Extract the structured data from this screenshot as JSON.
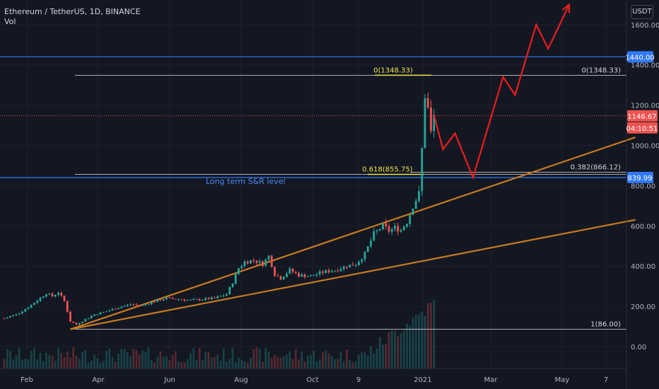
{
  "header": {
    "symbol_line": "Ethereum / TetherUS, 1D, BINANCE",
    "indicator": "Vol",
    "currency": "USDT"
  },
  "colors": {
    "background": "#131722",
    "up_candle": "#26a69a",
    "down_candle": "#ef5350",
    "channel": "#c87a1e",
    "fib_line": "#e6e6e6",
    "fib_highlight": "#f2e34b",
    "sr_line": "#3179f5",
    "projection": "#e81e1e",
    "current_price": "#ef5350"
  },
  "chart_data": {
    "type": "candlestick",
    "title": "Ethereum / TetherUS, 1D, BINANCE",
    "x_tick_labels": [
      "Feb",
      "Apr",
      "Jun",
      "Aug",
      "Oct",
      "9",
      "2021",
      "Mar",
      "May",
      "7"
    ],
    "y_tick_labels": [
      "1600.00",
      "1400.00",
      "1200.00",
      "1000.00",
      "800.00",
      "600.00",
      "400.00",
      "200.00",
      "0.00"
    ],
    "y_ticks": [
      1600,
      1400,
      1200,
      1000,
      800,
      600,
      400,
      200,
      0
    ],
    "ylim": [
      -60,
      1700
    ],
    "price_path": [
      {
        "t": 0,
        "p": 140
      },
      {
        "t": 4,
        "p": 160
      },
      {
        "t": 8,
        "p": 195
      },
      {
        "t": 11,
        "p": 230
      },
      {
        "t": 14,
        "p": 265
      },
      {
        "t": 16,
        "p": 250
      },
      {
        "t": 18,
        "p": 270
      },
      {
        "t": 20,
        "p": 225
      },
      {
        "t": 22,
        "p": 125
      },
      {
        "t": 24,
        "p": 110
      },
      {
        "t": 27,
        "p": 135
      },
      {
        "t": 30,
        "p": 160
      },
      {
        "t": 34,
        "p": 175
      },
      {
        "t": 38,
        "p": 195
      },
      {
        "t": 42,
        "p": 210
      },
      {
        "t": 46,
        "p": 205
      },
      {
        "t": 50,
        "p": 225
      },
      {
        "t": 54,
        "p": 240
      },
      {
        "t": 58,
        "p": 235
      },
      {
        "t": 62,
        "p": 230
      },
      {
        "t": 66,
        "p": 235
      },
      {
        "t": 70,
        "p": 240
      },
      {
        "t": 74,
        "p": 260
      },
      {
        "t": 76,
        "p": 320
      },
      {
        "t": 78,
        "p": 390
      },
      {
        "t": 80,
        "p": 420
      },
      {
        "t": 83,
        "p": 430
      },
      {
        "t": 86,
        "p": 410
      },
      {
        "t": 88,
        "p": 450
      },
      {
        "t": 90,
        "p": 360
      },
      {
        "t": 92,
        "p": 340
      },
      {
        "t": 95,
        "p": 380
      },
      {
        "t": 98,
        "p": 355
      },
      {
        "t": 102,
        "p": 350
      },
      {
        "t": 106,
        "p": 370
      },
      {
        "t": 110,
        "p": 380
      },
      {
        "t": 114,
        "p": 400
      },
      {
        "t": 117,
        "p": 410
      },
      {
        "t": 120,
        "p": 460
      },
      {
        "t": 123,
        "p": 560
      },
      {
        "t": 126,
        "p": 600
      },
      {
        "t": 128,
        "p": 575
      },
      {
        "t": 130,
        "p": 590
      },
      {
        "t": 132,
        "p": 580
      },
      {
        "t": 134,
        "p": 620
      },
      {
        "t": 136,
        "p": 700
      },
      {
        "t": 138,
        "p": 760
      },
      {
        "t": 139,
        "p": 980
      },
      {
        "t": 140,
        "p": 1250
      },
      {
        "t": 141,
        "p": 1180
      },
      {
        "t": 142,
        "p": 1060
      },
      {
        "t": 143,
        "p": 1146.67
      }
    ],
    "last_candle_index": 143,
    "fib_levels": [
      {
        "ratio": 0,
        "label_left": "0(1348.33)",
        "label_right": "0(1348.33)",
        "price": 1348.33
      },
      {
        "ratio": 0.618,
        "label_left": "0.618(855.75)",
        "price": 855.75
      },
      {
        "ratio": 0.382,
        "label_right": "0.382(866.12)",
        "price": 866.12
      },
      {
        "ratio": 1,
        "label_right": "1(86.00)",
        "price": 86.0
      }
    ],
    "horizontal_levels": [
      {
        "price": 1440.0,
        "label": "1440.00"
      },
      {
        "price": 839.99,
        "label": "839.99"
      }
    ],
    "annotations": [
      {
        "text": "Long term S&R level",
        "price": 830,
        "t": 80
      }
    ],
    "current_price": {
      "price": 1146.67,
      "label": "1146.67",
      "countdown": "04:10:51"
    },
    "channel_lines": [
      {
        "from": {
          "t": 22,
          "p": 86
        },
        "to": {
          "t": 210,
          "p": 1040
        }
      },
      {
        "from": {
          "t": 22,
          "p": 86
        },
        "to": {
          "t": 210,
          "p": 630
        }
      }
    ],
    "projection_path": [
      {
        "t": 143,
        "p": 1150
      },
      {
        "t": 146,
        "p": 980
      },
      {
        "t": 150,
        "p": 1060
      },
      {
        "t": 156,
        "p": 840
      },
      {
        "t": 166,
        "p": 1340
      },
      {
        "t": 170,
        "p": 1250
      },
      {
        "t": 177,
        "p": 1600
      },
      {
        "t": 181,
        "p": 1480
      },
      {
        "t": 188,
        "p": 1700
      }
    ]
  }
}
